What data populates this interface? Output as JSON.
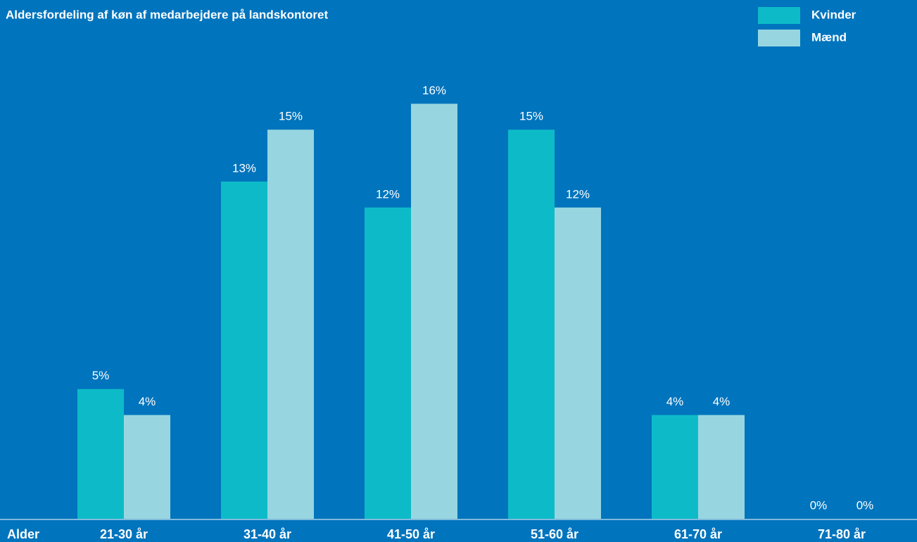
{
  "chart_data": {
    "type": "bar",
    "title": "Aldersfordeling af køn af medarbejdere på landskontoret",
    "x_label": "Alder",
    "categories": [
      "21-30 år",
      "31-40 år",
      "41-50 år",
      "51-60 år",
      "61-70 år",
      "71-80 år"
    ],
    "series": [
      {
        "name": "Kvinder",
        "color": "#0dbbc8",
        "values": [
          5,
          13,
          12,
          15,
          4,
          0
        ],
        "value_labels": [
          "5%",
          "13%",
          "12%",
          "15%",
          "4%",
          "0%"
        ]
      },
      {
        "name": "Mænd",
        "color": "#97d6e0",
        "values": [
          4,
          15,
          16,
          12,
          4,
          0
        ],
        "value_labels": [
          "4%",
          "15%",
          "16%",
          "12%",
          "4%",
          "0%"
        ]
      }
    ],
    "legend": "top-right"
  }
}
